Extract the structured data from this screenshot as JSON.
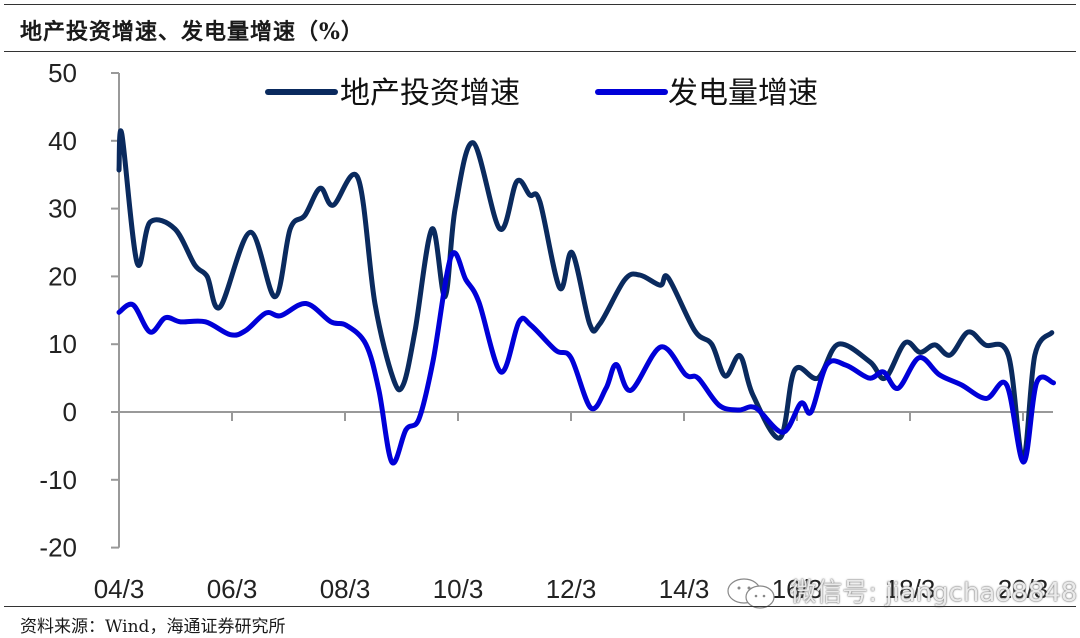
{
  "title": "地产投资增速、发电量增速（%）",
  "source": "资料来源：Wind，海通证券研究所",
  "watermark": {
    "icon": "wechat-icon",
    "text": "微信号: jiangchao8848"
  },
  "colors": {
    "real_estate": "#0a2a5e",
    "power": "#0000d8",
    "axis": "#999999"
  },
  "chart_data": {
    "type": "line",
    "title": "地产投资增速、发电量增速（%）",
    "xlabel": "",
    "ylabel": "%",
    "ylim": [
      -20,
      50
    ],
    "yticks": [
      50,
      40,
      30,
      20,
      10,
      0,
      -10,
      -20
    ],
    "xticks": [
      "04/3",
      "06/3",
      "08/3",
      "10/3",
      "12/3",
      "14/3",
      "16/3",
      "18/3",
      "20/3"
    ],
    "grid": false,
    "legend_position": "top",
    "x_unit": "year (2004.17 = 04/3)",
    "series": [
      {
        "name": "地产投资增速",
        "color": "#0a2a5e",
        "points": [
          [
            2004.17,
            35.7
          ],
          [
            2004.22,
            41.0
          ],
          [
            2004.49,
            22.0
          ],
          [
            2004.72,
            28.0
          ],
          [
            2005.16,
            27.0
          ],
          [
            2005.51,
            21.7
          ],
          [
            2005.73,
            20.0
          ],
          [
            2005.96,
            15.5
          ],
          [
            2006.49,
            26.5
          ],
          [
            2006.93,
            17.0
          ],
          [
            2007.2,
            27.0
          ],
          [
            2007.46,
            29.0
          ],
          [
            2007.73,
            33.0
          ],
          [
            2007.96,
            30.5
          ],
          [
            2008.4,
            34.5
          ],
          [
            2008.7,
            16.0
          ],
          [
            2009.02,
            5.0
          ],
          [
            2009.2,
            4.0
          ],
          [
            2009.41,
            12.0
          ],
          [
            2009.71,
            27.0
          ],
          [
            2009.94,
            17.0
          ],
          [
            2010.12,
            30.0
          ],
          [
            2010.44,
            39.7
          ],
          [
            2010.91,
            27.0
          ],
          [
            2011.21,
            34.0
          ],
          [
            2011.44,
            32.0
          ],
          [
            2011.62,
            31.0
          ],
          [
            2011.97,
            18.3
          ],
          [
            2012.19,
            23.5
          ],
          [
            2012.5,
            13.0
          ],
          [
            2012.68,
            13.0
          ],
          [
            2013.12,
            19.5
          ],
          [
            2013.39,
            20.2
          ],
          [
            2013.75,
            18.7
          ],
          [
            2013.89,
            19.8
          ],
          [
            2014.36,
            12.0
          ],
          [
            2014.66,
            10.0
          ],
          [
            2014.9,
            5.3
          ],
          [
            2015.16,
            8.3
          ],
          [
            2015.39,
            2.5
          ],
          [
            2015.87,
            -3.8
          ],
          [
            2016.13,
            6.2
          ],
          [
            2016.54,
            5.0
          ],
          [
            2016.9,
            10.0
          ],
          [
            2017.46,
            7.4
          ],
          [
            2017.73,
            5.0
          ],
          [
            2018.08,
            10.2
          ],
          [
            2018.35,
            8.8
          ],
          [
            2018.61,
            9.9
          ],
          [
            2018.88,
            8.4
          ],
          [
            2019.2,
            11.8
          ],
          [
            2019.5,
            9.9
          ],
          [
            2019.91,
            8.4
          ],
          [
            2020.17,
            -7.0
          ],
          [
            2020.38,
            8.4
          ],
          [
            2020.68,
            11.7
          ]
        ]
      },
      {
        "name": "发电量增速",
        "color": "#0000d8",
        "points": [
          [
            2004.17,
            14.7
          ],
          [
            2004.42,
            15.8
          ],
          [
            2004.72,
            11.8
          ],
          [
            2004.99,
            13.9
          ],
          [
            2005.26,
            13.3
          ],
          [
            2005.7,
            13.3
          ],
          [
            2006.14,
            11.4
          ],
          [
            2006.41,
            12.0
          ],
          [
            2006.77,
            14.6
          ],
          [
            2007.03,
            14.2
          ],
          [
            2007.48,
            16.0
          ],
          [
            2007.92,
            13.3
          ],
          [
            2008.19,
            12.8
          ],
          [
            2008.54,
            10.0
          ],
          [
            2008.77,
            3.2
          ],
          [
            2009.0,
            -7.4
          ],
          [
            2009.25,
            -2.6
          ],
          [
            2009.48,
            -1.0
          ],
          [
            2009.73,
            7.6
          ],
          [
            2010.05,
            23.0
          ],
          [
            2010.31,
            19.5
          ],
          [
            2010.54,
            16.2
          ],
          [
            2010.93,
            5.9
          ],
          [
            2011.25,
            13.3
          ],
          [
            2011.46,
            12.8
          ],
          [
            2011.9,
            9.1
          ],
          [
            2012.17,
            8.0
          ],
          [
            2012.52,
            0.6
          ],
          [
            2012.79,
            3.5
          ],
          [
            2012.97,
            7.0
          ],
          [
            2013.23,
            3.2
          ],
          [
            2013.76,
            9.6
          ],
          [
            2014.2,
            5.5
          ],
          [
            2014.42,
            5.0
          ],
          [
            2014.79,
            1.0
          ],
          [
            2015.14,
            0.3
          ],
          [
            2015.44,
            0.6
          ],
          [
            2015.92,
            -3.0
          ],
          [
            2016.24,
            1.3
          ],
          [
            2016.42,
            0.0
          ],
          [
            2016.7,
            7.0
          ],
          [
            2017.04,
            6.9
          ],
          [
            2017.45,
            5.0
          ],
          [
            2017.7,
            5.9
          ],
          [
            2017.96,
            3.5
          ],
          [
            2018.33,
            8.0
          ],
          [
            2018.69,
            5.5
          ],
          [
            2019.08,
            4.0
          ],
          [
            2019.52,
            2.0
          ],
          [
            2019.88,
            4.0
          ],
          [
            2020.18,
            -7.4
          ],
          [
            2020.41,
            4.3
          ],
          [
            2020.71,
            4.3
          ]
        ]
      }
    ]
  },
  "legend": {
    "items": [
      {
        "label": "地产投资增速",
        "color": "#0a2a5e"
      },
      {
        "label": "发电量增速",
        "color": "#0000d8"
      }
    ]
  }
}
